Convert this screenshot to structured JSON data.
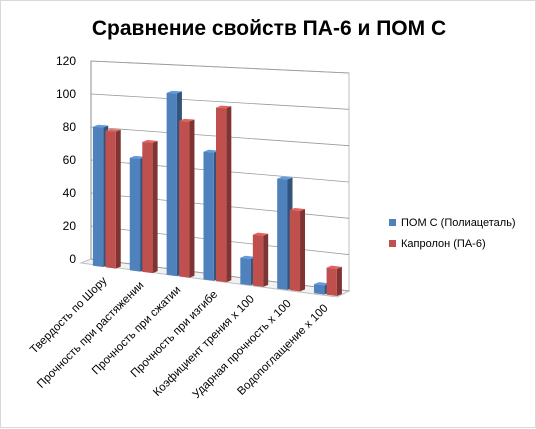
{
  "chart_data": {
    "type": "bar",
    "title": "Сравнение свойств ПА-6 и ПОМ С",
    "categories": [
      "Твердость по Шору",
      "Прочность при растяжении",
      "Прочность при сжатии",
      "Прочность при изгибе",
      "Коэфициент трения х 100",
      "Ударная прочность х 100",
      "Водопоглащение х 100"
    ],
    "series": [
      {
        "name": "ПОМ С (Полиацеталь)",
        "color": "#4f81bd",
        "values": [
          84,
          67,
          107,
          74,
          15,
          62,
          5
        ]
      },
      {
        "name": "Капролон (ПА-6)",
        "color": "#c0504d",
        "values": [
          82,
          77,
          91,
          100,
          29,
          45,
          15
        ]
      }
    ],
    "ylim": [
      0,
      120
    ],
    "yticks": [
      0,
      20,
      40,
      60,
      80,
      100,
      120
    ],
    "grid": true,
    "legend": "right"
  }
}
